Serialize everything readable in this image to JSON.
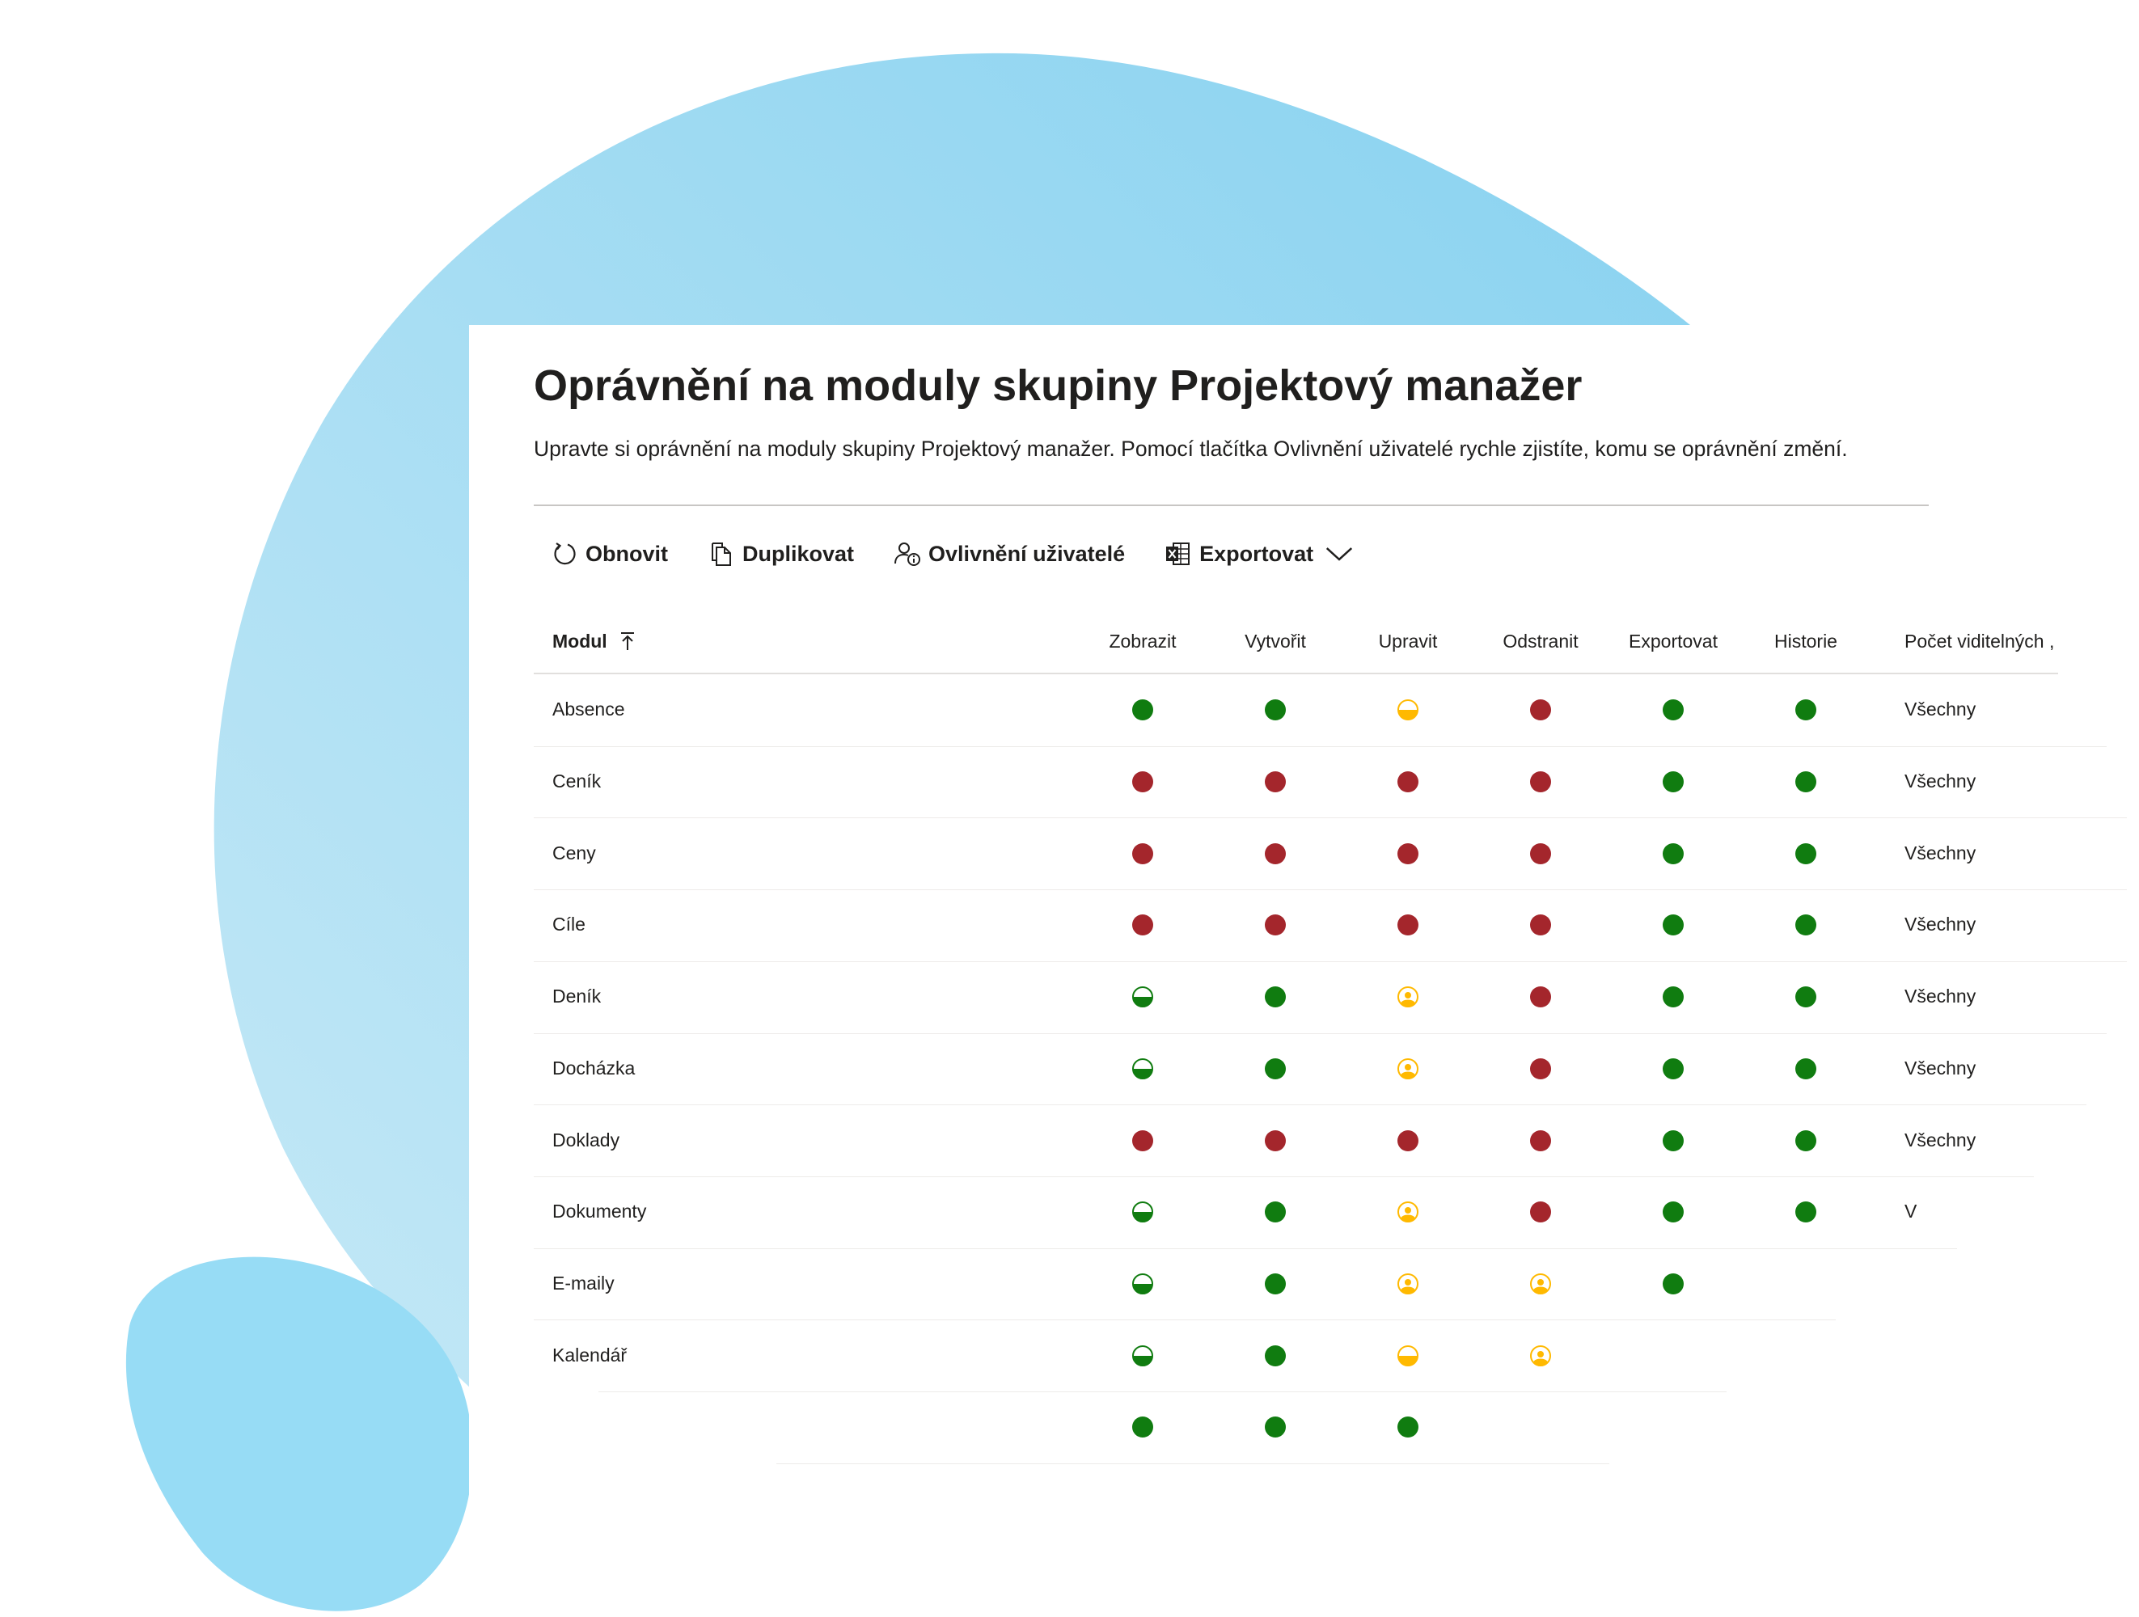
{
  "header": {
    "title": "Oprávnění na moduly skupiny Projektový manažer",
    "description": "Upravte si oprávnění na moduly skupiny Projektový manažer. Pomocí tlačítka Ovlivnění uživatelé rychle zjistíte, komu se oprávnění změní."
  },
  "toolbar": {
    "refresh_label": "Obnovit",
    "duplicate_label": "Duplikovat",
    "affected_users_label": "Ovlivnění uživatelé",
    "export_label": "Exportovat"
  },
  "colors": {
    "green": "#107c10",
    "red": "#a4262c",
    "yellow": "#ffb900",
    "accent_bg": "#9edcf5"
  },
  "table": {
    "module_header": "Modul",
    "columns": [
      "Zobrazit",
      "Vytvořit",
      "Upravit",
      "Odstranit",
      "Exportovat",
      "Historie"
    ],
    "visible_header": "Počet viditelných ,",
    "rows": [
      {
        "name": "Absence",
        "perms": [
          "green-full",
          "green-full",
          "yellow-half",
          "red-full",
          "green-full",
          "green-full"
        ],
        "visible": "Všechny"
      },
      {
        "name": "Ceník",
        "perms": [
          "red-full",
          "red-full",
          "red-full",
          "red-full",
          "green-full",
          "green-full"
        ],
        "visible": "Všechny"
      },
      {
        "name": "Ceny",
        "perms": [
          "red-full",
          "red-full",
          "red-full",
          "red-full",
          "green-full",
          "green-full"
        ],
        "visible": "Všechny"
      },
      {
        "name": "Cíle",
        "perms": [
          "red-full",
          "red-full",
          "red-full",
          "red-full",
          "green-full",
          "green-full"
        ],
        "visible": "Všechny"
      },
      {
        "name": "Deník",
        "perms": [
          "green-half",
          "green-full",
          "yellow-person",
          "red-full",
          "green-full",
          "green-full"
        ],
        "visible": "Všechny"
      },
      {
        "name": "Docházka",
        "perms": [
          "green-half",
          "green-full",
          "yellow-person",
          "red-full",
          "green-full",
          "green-full"
        ],
        "visible": "Všechny"
      },
      {
        "name": "Doklady",
        "perms": [
          "red-full",
          "red-full",
          "red-full",
          "red-full",
          "green-full",
          "green-full"
        ],
        "visible": "Všechny"
      },
      {
        "name": "Dokumenty",
        "perms": [
          "green-half",
          "green-full",
          "yellow-person",
          "red-full",
          "green-full",
          "green-full"
        ],
        "visible": "V"
      },
      {
        "name": "E-maily",
        "perms": [
          "green-half",
          "green-full",
          "yellow-person",
          "yellow-person",
          "green-full",
          ""
        ],
        "visible": ""
      },
      {
        "name": "Kalendář",
        "perms": [
          "green-half",
          "green-full",
          "yellow-half",
          "yellow-person",
          "",
          ""
        ],
        "visible": ""
      },
      {
        "name": "",
        "perms": [
          "green-full",
          "green-full",
          "green-full",
          "",
          "",
          ""
        ],
        "visible": ""
      }
    ]
  }
}
